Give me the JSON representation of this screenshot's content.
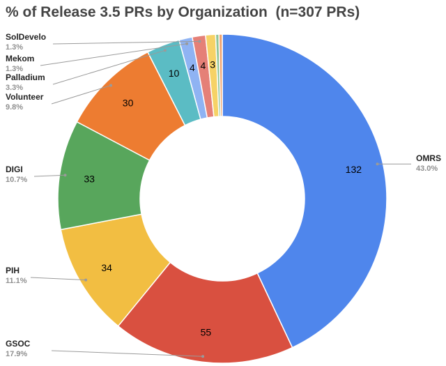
{
  "chart_data": {
    "type": "pie",
    "title": "% of Release 3.5 PRs by Organization  (n=307 PRs)",
    "donut": true,
    "slices": [
      {
        "name": "OMRS",
        "value": 132,
        "percent_label": "43.0%",
        "color": "#4f86ec"
      },
      {
        "name": "GSOC",
        "value": 55,
        "percent_label": "17.9%",
        "color": "#d95040"
      },
      {
        "name": "PIH",
        "value": 34,
        "percent_label": "11.1%",
        "color": "#f2be42"
      },
      {
        "name": "DIGI",
        "value": 33,
        "percent_label": "10.7%",
        "color": "#58a65c"
      },
      {
        "name": "Volunteer",
        "value": 30,
        "percent_label": "9.8%",
        "color": "#ed7c31"
      },
      {
        "name": "Palladium",
        "value": 10,
        "percent_label": "3.3%",
        "color": "#5bbcc4"
      },
      {
        "name": "Mekom",
        "value": 4,
        "percent_label": "1.3%",
        "color": "#8fb3f3"
      },
      {
        "name": "SolDevelo",
        "value": 4,
        "percent_label": "1.3%",
        "color": "#e58077"
      },
      {
        "name": "",
        "value": 3,
        "percent_label": "",
        "color": "#f6d266"
      },
      {
        "name": "",
        "value": 1,
        "percent_label": "",
        "color": "#8fc596"
      },
      {
        "name": "",
        "value": 1,
        "percent_label": "",
        "color": "#f1a46e"
      }
    ],
    "value_labels": [
      "132",
      "55",
      "34",
      "33",
      "30",
      "10",
      "4",
      "4",
      "3",
      "",
      ""
    ],
    "legend": "external labels with leader lines"
  }
}
